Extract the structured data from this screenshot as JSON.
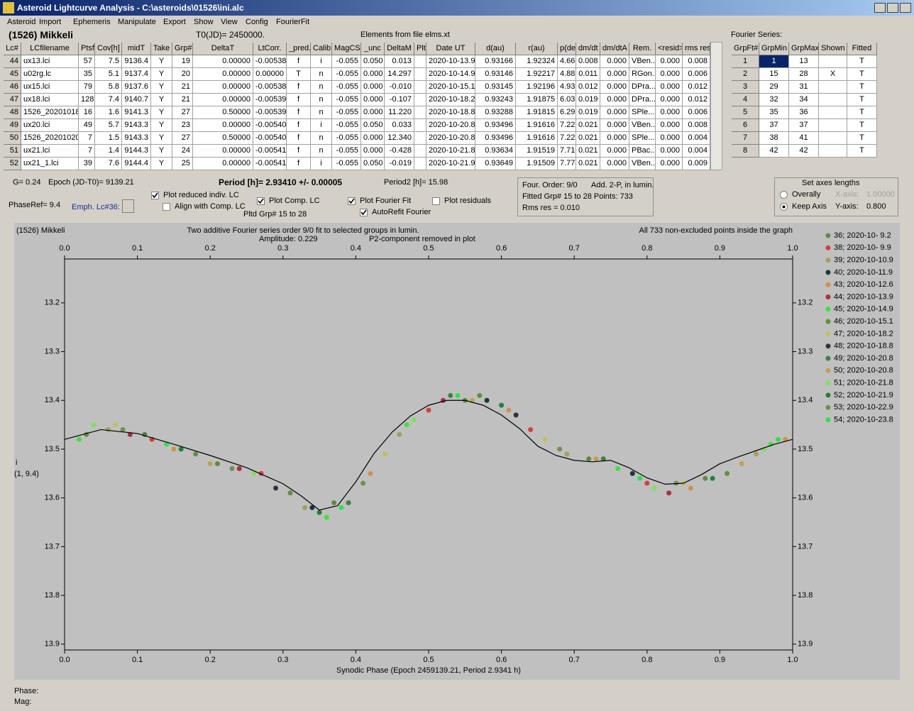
{
  "window": {
    "title": "Asteroid Lightcurve Analysis - C:\\asteroids\\01526\\ini.alc",
    "menu": [
      "Asteroid",
      "Import",
      "Ephemeris",
      "Manipulate",
      "Export",
      "Show",
      "View",
      "Config",
      "FourierFit"
    ]
  },
  "header": {
    "asteroid": "(1526) Mikkeli",
    "t0": "T0(JD)= 2450000.",
    "elements": "Elements from file elms.xt",
    "fourier_title": "Fourier Series:"
  },
  "table": {
    "columns": [
      "Lc#",
      "LCfilename",
      "Ptsf",
      "Cov[h]",
      "midT",
      "Take",
      "Grp#",
      "DeltaT",
      "LtCorr.",
      "_pred.",
      "Calib.",
      "MagCS",
      "_unc",
      "DeltaM",
      "Plt",
      "Date UT",
      "d(au)",
      "r(au)",
      "p(deg)",
      "dm/dt",
      "dm/dtA",
      "Rem.",
      "<resid>",
      "rms res"
    ],
    "rows": [
      [
        "44",
        "ux13.lci",
        "57",
        "7.5",
        "9136.4",
        "Y",
        "19",
        "0.00000",
        "-0.00538",
        "f",
        "i",
        "-0.055",
        "0.050",
        "0.013",
        null,
        "2020-10-13.9",
        "0.93166",
        "1.92324",
        "4.66",
        "0.008",
        "0.000",
        "VBen...",
        "0.000",
        "0.008"
      ],
      [
        "45",
        "u02rg.lc",
        "35",
        "5.1",
        "9137.4",
        "Y",
        "20",
        "0.00000",
        "0.00000",
        "T",
        "n",
        "-0.055",
        "0.000",
        "14.297",
        null,
        "2020-10-14.9",
        "0.93146",
        "1.92217",
        "4.88",
        "0.011",
        "0.000",
        "RGon...",
        "0.000",
        "0.006"
      ],
      [
        "46",
        "ux15.lci",
        "79",
        "5.8",
        "9137.6",
        "Y",
        "21",
        "0.00000",
        "-0.00538",
        "f",
        "n",
        "-0.055",
        "0.000",
        "-0.010",
        null,
        "2020-10-15.1",
        "0.93145",
        "1.92196",
        "4.93",
        "0.012",
        "0.000",
        "DPra...",
        "0.000",
        "0.012"
      ],
      [
        "47",
        "ux18.lci",
        "128",
        "7.4",
        "9140.7",
        "Y",
        "21",
        "0.00000",
        "-0.00539",
        "f",
        "n",
        "-0.055",
        "0.000",
        "-0.107",
        null,
        "2020-10-18.2",
        "0.93243",
        "1.91875",
        "6.03",
        "0.019",
        "0.000",
        "DPra...",
        "0.000",
        "0.012"
      ],
      [
        "48",
        "1526_20201018",
        "16",
        "1.6",
        "9141.3",
        "Y",
        "27",
        "0.50000",
        "-0.00539",
        "f",
        "n",
        "-0.055",
        "0.000",
        "11.220",
        null,
        "2020-10-18.8",
        "0.93288",
        "1.91815",
        "6.29",
        "0.019",
        "0.000",
        "SPle...",
        "0.000",
        "0.006"
      ],
      [
        "49",
        "ux20.lci",
        "49",
        "5.7",
        "9143.3",
        "Y",
        "23",
        "0.00000",
        "-0.00540",
        "f",
        "i",
        "-0.055",
        "0.050",
        "0.033",
        null,
        "2020-10-20.8",
        "0.93496",
        "1.91616",
        "7.22",
        "0.021",
        "0.000",
        "VBen...",
        "0.000",
        "0.008"
      ],
      [
        "50",
        "1526_20201020",
        "7",
        "1.5",
        "9143.3",
        "Y",
        "27",
        "0.50000",
        "-0.00540",
        "f",
        "n",
        "-0.055",
        "0.000",
        "12.340",
        null,
        "2020-10-20.8",
        "0.93496",
        "1.91616",
        "7.22",
        "0.021",
        "0.000",
        "SPle...",
        "0.000",
        "0.004"
      ],
      [
        "51",
        "ux21.lci",
        "7",
        "1.4",
        "9144.3",
        "Y",
        "24",
        "0.00000",
        "-0.00541",
        "f",
        "n",
        "-0.055",
        "0.000",
        "-0.428",
        null,
        "2020-10-21.8",
        "0.93634",
        "1.91519",
        "7.71",
        "0.021",
        "0.000",
        "PBac...",
        "0.000",
        "0.004"
      ],
      [
        "52",
        "ux21_1.lci",
        "39",
        "7.6",
        "9144.4",
        "Y",
        "25",
        "0.00000",
        "-0.00541",
        "f",
        "i",
        "-0.055",
        "0.050",
        "-0.019",
        null,
        "2020-10-21.9",
        "0.93649",
        "1.91509",
        "7.77",
        "0.021",
        "0.000",
        "VBen...",
        "0.000",
        "0.009"
      ]
    ]
  },
  "fourier_table": {
    "columns": [
      "GrpFt#",
      "GrpMin",
      "GrpMax",
      "Shown",
      "Fitted"
    ],
    "rows": [
      [
        "1",
        "1",
        "13",
        null,
        "T"
      ],
      [
        "2",
        "15",
        "28",
        "X",
        "T"
      ],
      [
        "3",
        "29",
        "31",
        null,
        "T"
      ],
      [
        "4",
        "32",
        "34",
        null,
        "T"
      ],
      [
        "5",
        "35",
        "36",
        null,
        "T"
      ],
      [
        "6",
        "37",
        "37",
        null,
        "T"
      ],
      [
        "7",
        "38",
        "41",
        null,
        "T"
      ],
      [
        "8",
        "42",
        "42",
        null,
        "T"
      ]
    ]
  },
  "controls": {
    "g": "G= 0.24",
    "epoch": "Epoch (JD-T0)= 9139.21",
    "period": "Period [h]= 2.93410 +/- 0.00005",
    "period2": "Period2 [h]= 15.98",
    "phase_ref": "PhaseRef= 9.4",
    "emph": "Emph. Lc#36:",
    "pltd_grp": "Pltd Grp#  15 to   28",
    "checkboxes": [
      {
        "label": "Plot reduced indiv. LC",
        "checked": true
      },
      {
        "label": "Align with Comp. LC",
        "checked": false
      },
      {
        "label": "Plot Comp. LC",
        "checked": true
      },
      {
        "label": "Plot Fourier Fit",
        "checked": true
      },
      {
        "label": "AutoRefit Fourier",
        "checked": true
      },
      {
        "label": "Plot residuals",
        "checked": false
      }
    ],
    "info": [
      "Four. Order:  9/0",
      "Add. 2-P, in lumin.",
      "Fitted Grp# 15 to 28 Points: 733",
      "Rms res     = 0.010"
    ],
    "axes": {
      "title": "Set axes lengths",
      "options": [
        {
          "label": "Overally",
          "selected": false
        },
        {
          "label": "Keep Axis",
          "selected": true
        }
      ],
      "x_label": "X-axis:",
      "x_value": "1.00000",
      "y_label": "Y-axis:",
      "y_value": "0.800"
    }
  },
  "footer": [
    "Phase:",
    "Mag:"
  ],
  "chart_data": {
    "type": "scatter",
    "corner_label": "(1526) Mikkeli",
    "title": "Two additive Fourier series order 9/0 fit to selected groups in lumin.",
    "amplitude": "Amplitude: 0.229",
    "note": "P2-component removed in plot",
    "points_note": "All 733 non-excluded points inside the graph",
    "xlabel": "Synodic Phase (Epoch 2459139.21, Period 2.9341 h)",
    "ylabel": "i",
    "ylabel2": "(1, 9.4)",
    "xlim": [
      0,
      1
    ],
    "xticks": [
      {
        "value": 0,
        "label": "0.0"
      },
      0.1,
      0.2,
      0.3,
      0.4,
      0.5,
      0.6,
      0.7,
      0.8,
      0.9,
      {
        "value": 1,
        "label": "1.0"
      }
    ],
    "ylim": [
      13.11,
      13.912
    ],
    "y_inverted": true,
    "yticks": [
      13.2,
      13.3,
      13.4,
      13.5,
      13.6,
      13.7,
      13.8,
      13.9
    ],
    "series": [
      {
        "name": "36; 2020-10- 9.2",
        "color": "#5e8c3e",
        "x": [
          0.03,
          0.21,
          0.37,
          0.55,
          0.72,
          0.88
        ],
        "values": [
          13.47,
          13.53,
          13.61,
          13.4,
          13.52,
          13.56
        ]
      },
      {
        "name": "38; 2020-10- 9.9",
        "color": "#d04040",
        "x": [
          0.12,
          0.27,
          0.5,
          0.64,
          0.8
        ],
        "values": [
          13.48,
          13.55,
          13.42,
          13.46,
          13.57
        ]
      },
      {
        "name": "39; 2020-10-10.9",
        "color": "#a0a060",
        "x": [
          0.06,
          0.33,
          0.46,
          0.69,
          0.95
        ],
        "values": [
          13.46,
          13.62,
          13.47,
          13.51,
          13.51
        ]
      },
      {
        "name": "40; 2020-10-11.9",
        "color": "#1a3a3a",
        "x": [
          0.34,
          0.58,
          0.78
        ],
        "values": [
          13.62,
          13.4,
          13.55
        ]
      },
      {
        "name": "43; 2020-10-12.6",
        "color": "#d09050",
        "x": [
          0.15,
          0.42,
          0.61,
          0.86,
          0.99
        ],
        "values": [
          13.5,
          13.55,
          13.42,
          13.58,
          13.48
        ]
      },
      {
        "name": "44; 2020-10-13.9",
        "color": "#a83040",
        "x": [
          0.09,
          0.24,
          0.52,
          0.83
        ],
        "values": [
          13.47,
          13.54,
          13.4,
          13.59
        ]
      },
      {
        "name": "45; 2020-10-14.9",
        "color": "#40e040",
        "x": [
          0.02,
          0.36,
          0.47,
          0.76,
          0.97
        ],
        "values": [
          13.48,
          13.64,
          13.45,
          13.54,
          13.49
        ]
      },
      {
        "name": "46; 2020-10-15.1",
        "color": "#609040",
        "x": [
          0.18,
          0.31,
          0.57,
          0.91
        ],
        "values": [
          13.51,
          13.59,
          13.39,
          13.55
        ]
      },
      {
        "name": "47; 2020-10-18.2",
        "color": "#c0c060",
        "x": [
          0.07,
          0.44,
          0.66,
          0.85
        ],
        "values": [
          13.45,
          13.51,
          13.48,
          13.57
        ]
      },
      {
        "name": "48; 2020-10-18.8",
        "color": "#303040",
        "x": [
          0.29,
          0.62
        ],
        "values": [
          13.58,
          13.43
        ]
      },
      {
        "name": "49; 2020-10-20.8",
        "color": "#408040",
        "x": [
          0.11,
          0.39,
          0.53,
          0.74
        ],
        "values": [
          13.47,
          13.61,
          13.39,
          13.52
        ]
      },
      {
        "name": "50; 2020-10-20.8",
        "color": "#c0a050",
        "x": [
          0.2,
          0.56,
          0.73,
          0.93
        ],
        "values": [
          13.53,
          13.4,
          13.52,
          13.53
        ]
      },
      {
        "name": "51; 2020-10-21.8",
        "color": "#80e060",
        "x": [
          0.04,
          0.26,
          0.48,
          0.81,
          0.96
        ],
        "values": [
          13.45,
          13.55,
          13.44,
          13.58,
          13.5
        ]
      },
      {
        "name": "52; 2020-10-21.9",
        "color": "#208040",
        "x": [
          0.16,
          0.35,
          0.6,
          0.89
        ],
        "values": [
          13.5,
          13.63,
          13.41,
          13.56
        ]
      },
      {
        "name": "53; 2020-10-22.9",
        "color": "#709050",
        "x": [
          0.08,
          0.23,
          0.41,
          0.68,
          0.84
        ],
        "values": [
          13.46,
          13.54,
          13.57,
          13.5,
          13.57
        ]
      },
      {
        "name": "54; 2020-10-23.8",
        "color": "#30e050",
        "x": [
          0.14,
          0.38,
          0.54,
          0.79,
          0.98
        ],
        "values": [
          13.49,
          13.62,
          13.39,
          13.56,
          13.48
        ]
      }
    ],
    "fit": {
      "color": "#000000",
      "x": [
        0,
        0.05,
        0.1,
        0.15,
        0.2,
        0.25,
        0.3,
        0.325,
        0.35,
        0.375,
        0.4,
        0.425,
        0.45,
        0.475,
        0.5,
        0.525,
        0.55,
        0.575,
        0.6,
        0.625,
        0.65,
        0.675,
        0.7,
        0.725,
        0.75,
        0.775,
        0.8,
        0.825,
        0.85,
        0.875,
        0.9,
        0.925,
        0.95,
        0.975,
        1
      ],
      "values": [
        13.48,
        13.46,
        13.468,
        13.49,
        13.513,
        13.538,
        13.571,
        13.596,
        13.625,
        13.616,
        13.567,
        13.509,
        13.465,
        13.432,
        13.41,
        13.4,
        13.4,
        13.41,
        13.43,
        13.458,
        13.494,
        13.513,
        13.523,
        13.526,
        13.523,
        13.538,
        13.559,
        13.572,
        13.57,
        13.552,
        13.53,
        13.516,
        13.503,
        13.49,
        13.48
      ]
    }
  }
}
